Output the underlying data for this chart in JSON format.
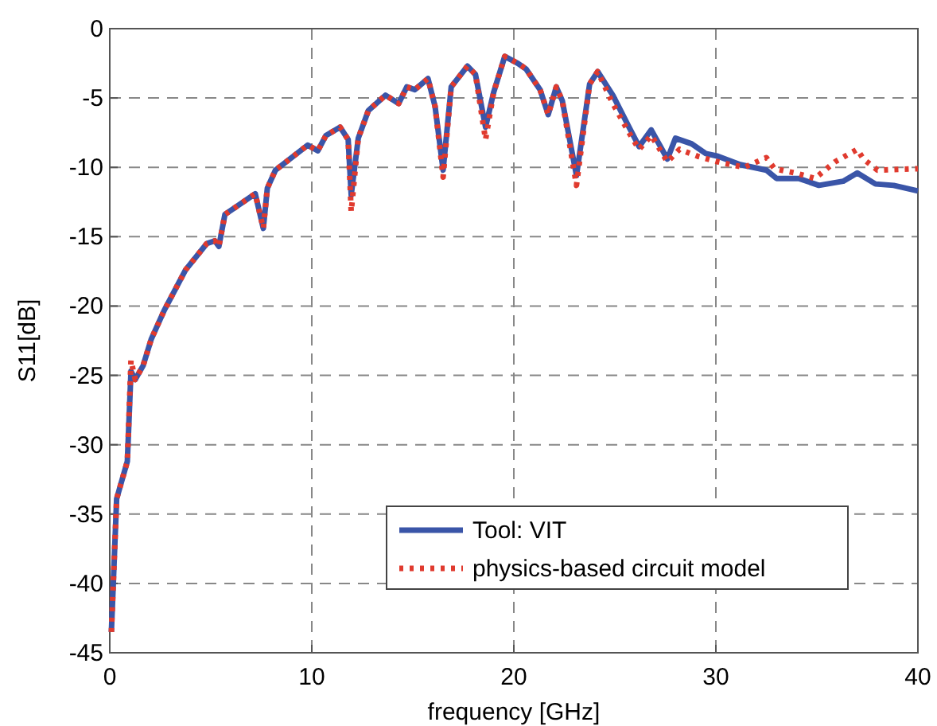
{
  "chart_data": {
    "type": "line",
    "xlabel": "frequency [GHz]",
    "ylabel": "S11[dB]",
    "xlim": [
      0,
      40
    ],
    "ylim": [
      -45,
      0
    ],
    "xticks": [
      0,
      10,
      20,
      30,
      40
    ],
    "yticks": [
      -45,
      -40,
      -35,
      -30,
      -25,
      -20,
      -15,
      -10,
      -5,
      0
    ],
    "grid": true,
    "legend": "bottom right",
    "series": [
      {
        "name": "Tool: VIT",
        "color": "#3a55a8",
        "line_style": "solid",
        "x": [
          0.08,
          0.34,
          0.87,
          1.05,
          1.26,
          1.65,
          2.05,
          2.7,
          3.75,
          4.8,
          5.2,
          5.4,
          5.7,
          7.2,
          7.6,
          7.8,
          8.2,
          9.8,
          10.3,
          10.7,
          11.4,
          11.8,
          11.95,
          12.3,
          12.8,
          13.65,
          14.3,
          14.7,
          15.1,
          15.75,
          16.1,
          16.5,
          16.9,
          17.7,
          18.1,
          18.6,
          19.0,
          19.55,
          20.2,
          20.6,
          21.3,
          21.7,
          22.1,
          22.4,
          23.1,
          23.75,
          24.15,
          24.9,
          25.7,
          26.2,
          26.8,
          27.6,
          28.0,
          28.8,
          29.5,
          30.1,
          31.2,
          32.5,
          33.0,
          34.1,
          35.1,
          36.3,
          37.0,
          37.9,
          38.8,
          40
        ],
        "values": [
          -43.5,
          -33.9,
          -31.2,
          -24.7,
          -25.3,
          -24.3,
          -22.4,
          -20.3,
          -17.4,
          -15.5,
          -15.3,
          -15.7,
          -13.4,
          -11.9,
          -14.4,
          -11.5,
          -10.2,
          -8.4,
          -8.8,
          -7.7,
          -7.1,
          -8,
          -12,
          -7.9,
          -5.9,
          -4.8,
          -5.4,
          -4.2,
          -4.4,
          -3.6,
          -5.6,
          -10.2,
          -4.2,
          -2.7,
          -3.3,
          -7.1,
          -4.6,
          -2.0,
          -2.5,
          -2.9,
          -4.4,
          -6.2,
          -4.2,
          -5.2,
          -10.6,
          -4.0,
          -3.1,
          -4.8,
          -7.1,
          -8.5,
          -7.3,
          -9.4,
          -7.9,
          -8.3,
          -9.0,
          -9.2,
          -9.8,
          -10.2,
          -10.8,
          -10.8,
          -11.3,
          -11.0,
          -10.4,
          -11.2,
          -11.3,
          -11.7
        ]
      },
      {
        "name": "physics-based circuit model",
        "color": "#e03a2e",
        "line_style": "dotted",
        "x": [
          0.08,
          0.34,
          0.87,
          1.05,
          1.26,
          1.65,
          2.05,
          2.7,
          3.75,
          4.8,
          5.2,
          5.4,
          5.7,
          7.2,
          7.6,
          7.8,
          8.2,
          9.8,
          10.3,
          10.7,
          11.4,
          11.8,
          11.95,
          12.3,
          12.8,
          13.65,
          14.3,
          14.7,
          15.1,
          15.75,
          16.1,
          16.5,
          16.9,
          17.7,
          18.1,
          18.6,
          19.0,
          19.55,
          20.2,
          20.6,
          21.3,
          21.7,
          22.1,
          22.4,
          23.1,
          23.75,
          24.15,
          24.9,
          25.7,
          26.2,
          26.8,
          27.6,
          28.2,
          29.1,
          30.1,
          31.4,
          32.5,
          32.9,
          33.9,
          34.9,
          35.9,
          37.0,
          37.3,
          38.0,
          40
        ],
        "values": [
          -43.5,
          -33.9,
          -31.2,
          -23.9,
          -25.3,
          -24.3,
          -22.4,
          -20.3,
          -17.4,
          -15.5,
          -15.3,
          -15.7,
          -13.4,
          -11.9,
          -14.4,
          -11.5,
          -10.2,
          -8.4,
          -8.8,
          -7.7,
          -7.1,
          -8,
          -13.2,
          -7.9,
          -5.9,
          -4.8,
          -5.4,
          -4.2,
          -4.4,
          -3.6,
          -5.6,
          -10.7,
          -4.2,
          -2.7,
          -3.3,
          -8,
          -4.6,
          -2.0,
          -2.5,
          -2.9,
          -4.4,
          -6.2,
          -4.2,
          -5.2,
          -11.3,
          -4.0,
          -3.1,
          -5.4,
          -7.5,
          -8.7,
          -7.7,
          -9.6,
          -8.7,
          -9.2,
          -9.6,
          -10.0,
          -9.3,
          -10.1,
          -10.4,
          -10.8,
          -9.6,
          -8.7,
          -9.4,
          -10.2,
          -10.1
        ]
      }
    ]
  }
}
